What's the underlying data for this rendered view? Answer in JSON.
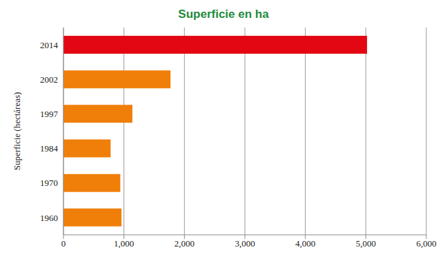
{
  "chart_data": {
    "type": "bar",
    "orientation": "horizontal",
    "title": "Superficie en ha",
    "ylabel": "Superficie (hectáreas)",
    "categories": [
      "2014",
      "2002",
      "1997",
      "1984",
      "1970",
      "1960"
    ],
    "values": [
      5020,
      1770,
      1140,
      780,
      940,
      960
    ],
    "colors": [
      "#e30613",
      "#f07f0a",
      "#f07f0a",
      "#f07f0a",
      "#f07f0a",
      "#f07f0a"
    ],
    "xlim": [
      0,
      6000
    ],
    "xticks": [
      0,
      {
        "value": 1000,
        "label": "1,000"
      },
      {
        "value": 2000,
        "label": "2,000"
      },
      {
        "value": 3000,
        "label": "3,000"
      },
      {
        "value": 4000,
        "label": "4,000"
      },
      {
        "value": 5000,
        "label": "5,000"
      },
      {
        "value": 6000,
        "label": "6,000"
      }
    ],
    "grid": true
  }
}
